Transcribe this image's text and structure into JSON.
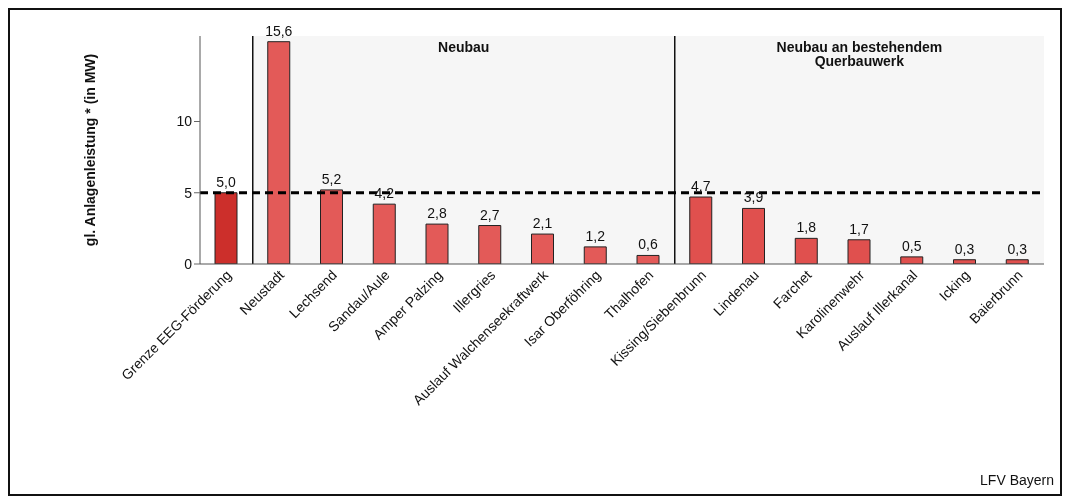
{
  "chart_data": {
    "type": "bar",
    "ylabel": "gl. Anlagenleistung * (in MW)",
    "categories": [
      "Grenze EEG-Förderung",
      "Neustadt",
      "Lechsend",
      "Sandau/Aule",
      "Amper Palzing",
      "Illergries",
      "Auslauf Walchenseekraftwerk",
      "Isar Oberföhring",
      "Thalhofen",
      "Kissing/Siebenbrunn",
      "Lindenau",
      "Farchet",
      "Karolinenwehr",
      "Auslauf Illerkanal",
      "Icking",
      "Baierbrunn"
    ],
    "values": [
      5.0,
      15.6,
      5.2,
      4.2,
      2.8,
      2.7,
      2.1,
      1.2,
      0.6,
      4.7,
      3.9,
      1.8,
      1.7,
      0.5,
      0.3,
      0.3
    ],
    "value_labels": [
      "5,0",
      "15,6",
      "5,2",
      "4,2",
      "2,8",
      "2,7",
      "2,1",
      "1,2",
      "0,6",
      "4,7",
      "3,9",
      "1,8",
      "1,7",
      "0,5",
      "0,3",
      "0,3"
    ],
    "colors": [
      "#cc2f2b",
      "#e35a58",
      "#e35a58",
      "#e35a58",
      "#e35a58",
      "#e35a58",
      "#e35a58",
      "#e35a58",
      "#e35a58",
      "#e0504e",
      "#e0504e",
      "#e0504e",
      "#e0504e",
      "#e0504e",
      "#e0504e",
      "#e0504e"
    ],
    "ylim": [
      0,
      16
    ],
    "yticks": [
      0,
      5,
      10
    ],
    "grid": false,
    "legend": false,
    "ref_lines": [
      {
        "axis": "y",
        "value": 5,
        "label": null,
        "color": "#000000",
        "line_style": "dashed"
      }
    ],
    "bands": [
      {
        "axis": "x",
        "from": "Neustadt",
        "to": "Thalhofen",
        "label": "Neubau",
        "color": "#f6f6f6"
      },
      {
        "axis": "x",
        "from": "Kissing/Siebenbrunn",
        "to": "Baierbrunn",
        "label": "Neubau an bestehendem Querbauwerk",
        "color": "#f6f6f6"
      }
    ],
    "annotations": [
      "LFV Bayern"
    ]
  }
}
